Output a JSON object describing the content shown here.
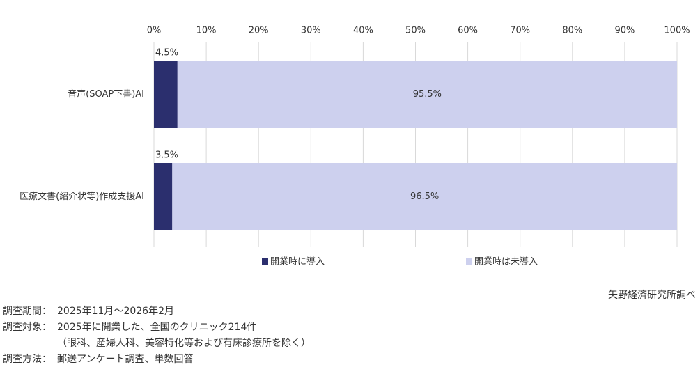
{
  "chart_data": {
    "type": "stacked-bar-horizontal",
    "categories": [
      "音声(SOAP下書)AI",
      "医療文書(紹介状等)作成支援AI"
    ],
    "series": [
      {
        "name": "開業時に導入",
        "color": "#2b2f6e",
        "values": [
          4.5,
          3.5
        ],
        "value_labels": [
          "4.5%",
          "3.5%"
        ]
      },
      {
        "name": "開業時は未導入",
        "color": "#cdd0ee",
        "values": [
          95.5,
          96.5
        ],
        "value_labels": [
          "95.5%",
          "96.5%"
        ]
      }
    ],
    "xlim": [
      0,
      100
    ],
    "xticks": [
      {
        "value": 0,
        "label": "0%"
      },
      {
        "value": 10,
        "label": "10%"
      },
      {
        "value": 20,
        "label": "20%"
      },
      {
        "value": 30,
        "label": "30%"
      },
      {
        "value": 40,
        "label": "40%"
      },
      {
        "value": 50,
        "label": "50%"
      },
      {
        "value": 60,
        "label": "60%"
      },
      {
        "value": 70,
        "label": "70%"
      },
      {
        "value": 80,
        "label": "80%"
      },
      {
        "value": 90,
        "label": "90%"
      },
      {
        "value": 100,
        "label": "100%"
      }
    ],
    "grid": true,
    "legend": "bottom",
    "source": "矢野経済研究所調べ",
    "notes": [
      {
        "label": "調査期間：",
        "lines": [
          "2025年11月～2026年2月"
        ]
      },
      {
        "label": "調査対象：",
        "lines": [
          "2025年に開業した、全国のクリニック214件",
          "（眼科、産婦人科、美容特化等および有床診療所を除く）"
        ]
      },
      {
        "label": "調査方法：",
        "lines": [
          "郵送アンケート調査、単数回答"
        ]
      }
    ]
  }
}
